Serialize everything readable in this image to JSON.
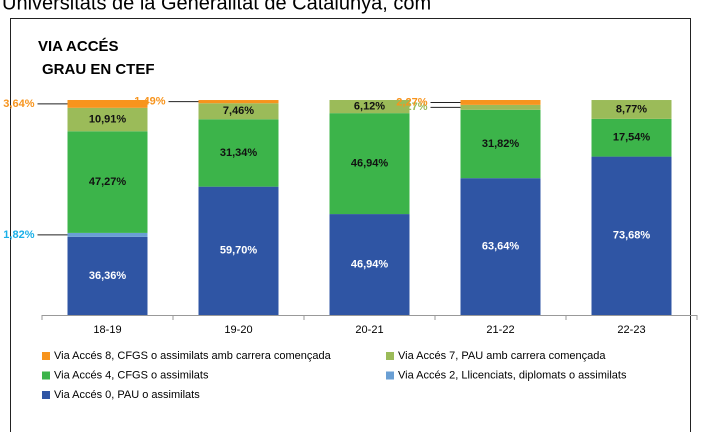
{
  "header": "Universitats de la Generalitat de Catalunya, com",
  "chart_data": {
    "type": "stacked_bar",
    "title": "VIA ACCÉS",
    "subtitle": "GRAU EN CTEF",
    "categories": [
      "18-19",
      "19-20",
      "20-21",
      "21-22",
      "22-23"
    ],
    "ylim": [
      0,
      100
    ],
    "series": [
      {
        "name": "Via Accés 0, PAU o assimilats",
        "color": "#2f55a4",
        "values": [
          36.36,
          59.7,
          46.94,
          63.64,
          73.68
        ],
        "value_labels": [
          "36,36%",
          "59,70%",
          "46,94%",
          "63,64%",
          "73,68%"
        ]
      },
      {
        "name": "Via Accés 2, Llicenciats, diplomats o assimilats",
        "color": "#6a9fd4",
        "values": [
          1.82,
          0,
          0,
          0,
          0
        ],
        "value_labels": [
          "1,82%",
          null,
          null,
          null,
          null
        ]
      },
      {
        "name": "Via Accés 4, CFGS o assimilats",
        "color": "#3cb44a",
        "values": [
          47.27,
          31.34,
          46.94,
          31.82,
          17.54
        ],
        "value_labels": [
          "47,27%",
          "31,34%",
          "46,94%",
          "31,82%",
          "17,54%"
        ]
      },
      {
        "name": "Via Accés 7, PAU amb carrera començada",
        "color": "#9bbb59",
        "values": [
          10.91,
          7.46,
          6.12,
          2.27,
          8.77
        ],
        "value_labels": [
          "10,91%",
          "7,46%",
          "6,12%",
          "2,27%",
          "8,77%"
        ]
      },
      {
        "name": "Via Accés 8, CFGS o assimilats amb carrera començada",
        "color": "#f7941d",
        "values": [
          3.64,
          1.49,
          0,
          2.27,
          0
        ],
        "value_labels": [
          "3,64%",
          "1,49%",
          null,
          "2,27%",
          null
        ]
      }
    ]
  }
}
